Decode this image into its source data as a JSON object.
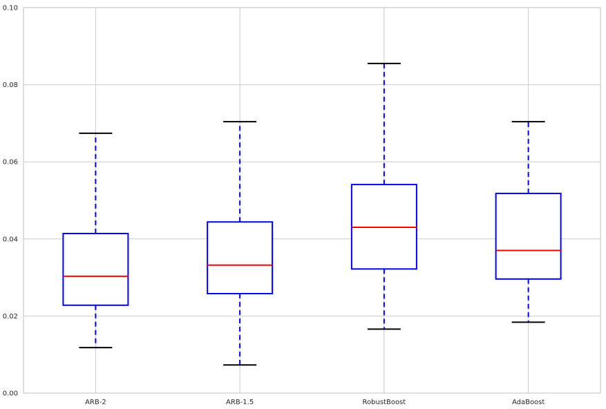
{
  "chart_data": {
    "type": "box",
    "categories": [
      "ARB-2",
      "ARB-1.5",
      "RobustBoost",
      "AdaBoost"
    ],
    "boxes": [
      {
        "category": "ARB-2",
        "whisker_low": 0.0118,
        "q1": 0.0228,
        "median": 0.0303,
        "q3": 0.0414,
        "whisker_high": 0.0674
      },
      {
        "category": "ARB-1.5",
        "whisker_low": 0.0073,
        "q1": 0.0258,
        "median": 0.0332,
        "q3": 0.0444,
        "whisker_high": 0.0704
      },
      {
        "category": "RobustBoost",
        "whisker_low": 0.0166,
        "q1": 0.0322,
        "median": 0.043,
        "q3": 0.0541,
        "whisker_high": 0.0855
      },
      {
        "category": "AdaBoost",
        "whisker_low": 0.0184,
        "q1": 0.0296,
        "median": 0.037,
        "q3": 0.0518,
        "whisker_high": 0.0704
      }
    ],
    "title": "",
    "xlabel": "",
    "ylabel": "",
    "ylim": [
      0.0,
      0.1
    ],
    "yticks": [
      "0.00",
      "0.02",
      "0.04",
      "0.06",
      "0.08",
      "0.10"
    ],
    "yticks_values": [
      0.0,
      0.02,
      0.04,
      0.06,
      0.08,
      0.1
    ],
    "grid": true,
    "colors": {
      "box": "#0000ff",
      "median": "#ff0000",
      "whisker": "#0000ff",
      "cap": "#000000",
      "grid": "#cbcbcb",
      "spine": "#bcbcbc"
    }
  }
}
